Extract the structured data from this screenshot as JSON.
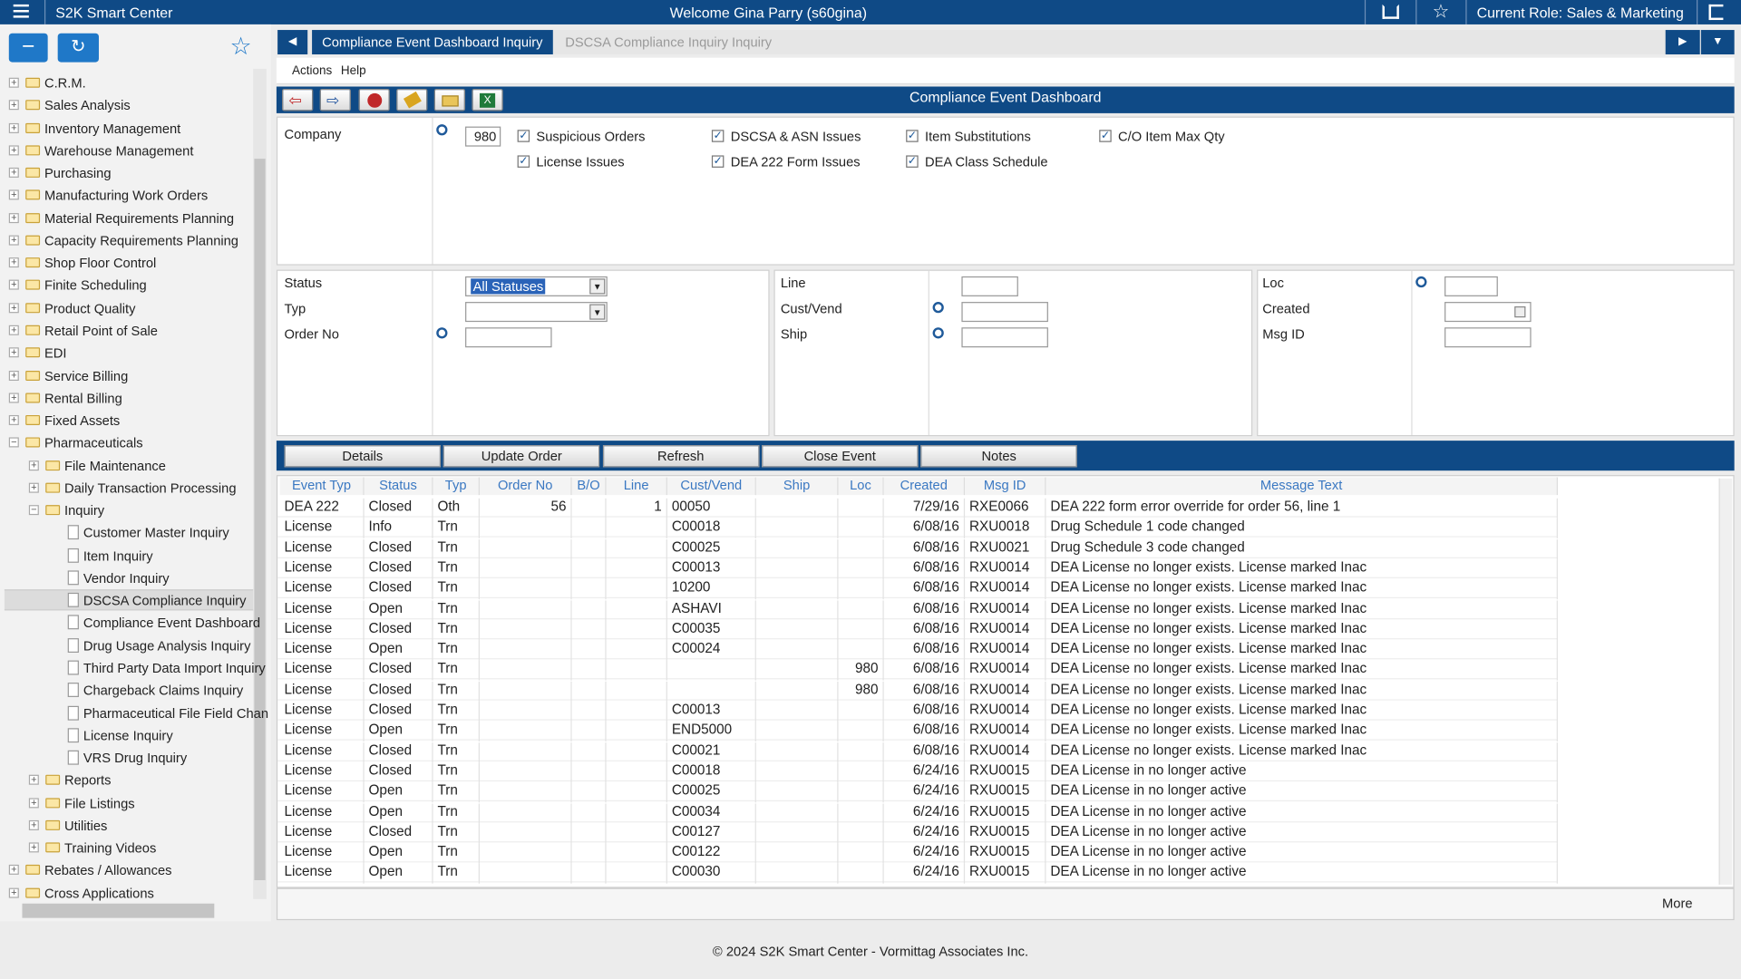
{
  "header": {
    "app_name": "S2K Smart Center",
    "welcome": "Welcome Gina Parry (s60gina)",
    "role": "Current Role: Sales & Marketing"
  },
  "tree": [
    {
      "label": "C.R.M.",
      "expanded": false
    },
    {
      "label": "Sales Analysis",
      "expanded": false
    },
    {
      "label": "Inventory Management",
      "expanded": false
    },
    {
      "label": "Warehouse Management",
      "expanded": false
    },
    {
      "label": "Purchasing",
      "expanded": false
    },
    {
      "label": "Manufacturing Work Orders",
      "expanded": false
    },
    {
      "label": "Material Requirements Planning",
      "expanded": false
    },
    {
      "label": "Capacity Requirements Planning",
      "expanded": false
    },
    {
      "label": "Shop Floor Control",
      "expanded": false
    },
    {
      "label": "Finite Scheduling",
      "expanded": false
    },
    {
      "label": "Product Quality",
      "expanded": false
    },
    {
      "label": "Retail Point of Sale",
      "expanded": false
    },
    {
      "label": "EDI",
      "expanded": false
    },
    {
      "label": "Service Billing",
      "expanded": false
    },
    {
      "label": "Rental Billing",
      "expanded": false
    },
    {
      "label": "Fixed Assets",
      "expanded": false
    },
    {
      "label": "Pharmaceuticals",
      "expanded": true,
      "children": [
        {
          "label": "File Maintenance",
          "expanded": false
        },
        {
          "label": "Daily Transaction Processing",
          "expanded": false
        },
        {
          "label": "Inquiry",
          "expanded": true,
          "children": [
            {
              "label": "Customer Master Inquiry"
            },
            {
              "label": "Item Inquiry"
            },
            {
              "label": "Vendor Inquiry"
            },
            {
              "label": "DSCSA Compliance Inquiry",
              "selected": true
            },
            {
              "label": "Compliance Event Dashboard"
            },
            {
              "label": "Drug Usage Analysis Inquiry"
            },
            {
              "label": "Third Party Data Import Inquiry"
            },
            {
              "label": "Chargeback Claims Inquiry"
            },
            {
              "label": "Pharmaceutical File Field Chan"
            },
            {
              "label": "License Inquiry"
            },
            {
              "label": "VRS Drug Inquiry"
            }
          ]
        },
        {
          "label": "Reports",
          "expanded": false
        },
        {
          "label": "File Listings",
          "expanded": false
        },
        {
          "label": "Utilities",
          "expanded": false
        },
        {
          "label": "Training Videos",
          "expanded": false
        }
      ]
    },
    {
      "label": "Rebates / Allowances",
      "expanded": false
    },
    {
      "label": "Cross Applications",
      "expanded": false
    }
  ],
  "tabs": [
    "Compliance Event Dashboard Inquiry",
    "DSCSA Compliance Inquiry Inquiry"
  ],
  "menu": [
    "Actions",
    "Help"
  ],
  "panel_title": "Compliance Event Dashboard",
  "company": {
    "label": "Company",
    "value": "980"
  },
  "checkboxes": [
    {
      "label": "Suspicious Orders",
      "checked": true
    },
    {
      "label": "DSCSA & ASN Issues",
      "checked": true
    },
    {
      "label": "Item Substitutions",
      "checked": true
    },
    {
      "label": "C/O Item Max Qty",
      "checked": true
    },
    {
      "label": "License Issues",
      "checked": true
    },
    {
      "label": "DEA 222 Form Issues",
      "checked": true
    },
    {
      "label": "DEA Class Schedule",
      "checked": true
    }
  ],
  "filters": [
    [
      {
        "label": "Status",
        "dropdown": true,
        "value": "All Statuses"
      },
      {
        "label": "Typ",
        "dropdown": true
      },
      {
        "label": "Order No",
        "search": true
      }
    ],
    [
      {
        "label": "Line"
      },
      {
        "label": "Cust/Vend",
        "search": true
      },
      {
        "label": "Ship",
        "search": true
      }
    ],
    [
      {
        "label": "Loc",
        "search": true
      },
      {
        "label": "Created",
        "date": true
      },
      {
        "label": "Msg ID"
      }
    ]
  ],
  "buttons": [
    "Details",
    "Update Order",
    "Refresh",
    "Close Event",
    "Notes"
  ],
  "table": {
    "columns": [
      "Event Typ",
      "Status",
      "Typ",
      "Order No",
      "B/O",
      "Line",
      "Cust/Vend",
      "Ship",
      "Loc",
      "Created",
      "Msg ID",
      "Message Text"
    ],
    "rows": [
      [
        "DEA 222",
        "Closed",
        "Oth",
        56,
        null,
        1,
        "00050",
        null,
        null,
        "7/29/16",
        "RXE0066",
        "DEA 222 form error override for order 56, line 1"
      ],
      [
        "License",
        "Info",
        "Trn",
        null,
        null,
        null,
        "C00018",
        null,
        null,
        "6/08/16",
        "RXU0018",
        "Drug Schedule 1 code changed"
      ],
      [
        "License",
        "Closed",
        "Trn",
        null,
        null,
        null,
        "C00025",
        null,
        null,
        "6/08/16",
        "RXU0021",
        "Drug Schedule 3 code changed"
      ],
      [
        "License",
        "Closed",
        "Trn",
        null,
        null,
        null,
        "C00013",
        null,
        null,
        "6/08/16",
        "RXU0014",
        "DEA License no longer exists. License marked Inac"
      ],
      [
        "License",
        "Closed",
        "Trn",
        null,
        null,
        null,
        "10200",
        null,
        null,
        "6/08/16",
        "RXU0014",
        "DEA License no longer exists. License marked Inac"
      ],
      [
        "License",
        "Open",
        "Trn",
        null,
        null,
        null,
        "ASHAVI",
        null,
        null,
        "6/08/16",
        "RXU0014",
        "DEA License no longer exists. License marked Inac"
      ],
      [
        "License",
        "Closed",
        "Trn",
        null,
        null,
        null,
        "C00035",
        null,
        null,
        "6/08/16",
        "RXU0014",
        "DEA License no longer exists. License marked Inac"
      ],
      [
        "License",
        "Open",
        "Trn",
        null,
        null,
        null,
        "C00024",
        null,
        null,
        "6/08/16",
        "RXU0014",
        "DEA License no longer exists. License marked Inac"
      ],
      [
        "License",
        "Closed",
        "Trn",
        null,
        null,
        null,
        null,
        null,
        980,
        "6/08/16",
        "RXU0014",
        "DEA License no longer exists. License marked Inac"
      ],
      [
        "License",
        "Closed",
        "Trn",
        null,
        null,
        null,
        null,
        null,
        980,
        "6/08/16",
        "RXU0014",
        "DEA License no longer exists. License marked Inac"
      ],
      [
        "License",
        "Closed",
        "Trn",
        null,
        null,
        null,
        "C00013",
        null,
        null,
        "6/08/16",
        "RXU0014",
        "DEA License no longer exists. License marked Inac"
      ],
      [
        "License",
        "Open",
        "Trn",
        null,
        null,
        null,
        "END5000",
        null,
        null,
        "6/08/16",
        "RXU0014",
        "DEA License no longer exists. License marked Inac"
      ],
      [
        "License",
        "Closed",
        "Trn",
        null,
        null,
        null,
        "C00021",
        null,
        null,
        "6/08/16",
        "RXU0014",
        "DEA License no longer exists. License marked Inac"
      ],
      [
        "License",
        "Closed",
        "Trn",
        null,
        null,
        null,
        "C00018",
        null,
        null,
        "6/24/16",
        "RXU0015",
        "DEA License in no longer active"
      ],
      [
        "License",
        "Open",
        "Trn",
        null,
        null,
        null,
        "C00025",
        null,
        null,
        "6/24/16",
        "RXU0015",
        "DEA License in no longer active"
      ],
      [
        "License",
        "Open",
        "Trn",
        null,
        null,
        null,
        "C00034",
        null,
        null,
        "6/24/16",
        "RXU0015",
        "DEA License in no longer active"
      ],
      [
        "License",
        "Closed",
        "Trn",
        null,
        null,
        null,
        "C00127",
        null,
        null,
        "6/24/16",
        "RXU0015",
        "DEA License in no longer active"
      ],
      [
        "License",
        "Open",
        "Trn",
        null,
        null,
        null,
        "C00122",
        null,
        null,
        "6/24/16",
        "RXU0015",
        "DEA License in no longer active"
      ],
      [
        "License",
        "Open",
        "Trn",
        null,
        null,
        null,
        "C00030",
        null,
        null,
        "6/24/16",
        "RXU0015",
        "DEA License in no longer active"
      ]
    ]
  },
  "more": "More",
  "footer": "© 2024 S2K Smart Center - Vormittag Associates Inc."
}
